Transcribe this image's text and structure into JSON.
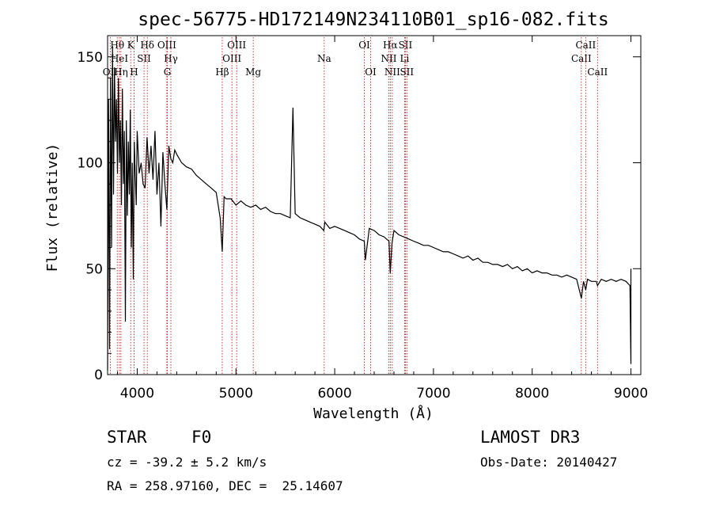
{
  "chart_data": {
    "type": "line",
    "title": "spec-56775-HD172149N234110B01_sp16-082.fits",
    "xlabel": "Wavelength (Å)",
    "ylabel": "Flux (relative)",
    "xlim": [
      3700,
      9100
    ],
    "ylim": [
      0,
      160
    ],
    "xticks": [
      4000,
      5000,
      6000,
      7000,
      8000,
      9000
    ],
    "yticks": [
      0,
      50,
      100,
      150
    ],
    "series": [
      {
        "name": "spectrum",
        "x": [
          3700,
          3710,
          3720,
          3730,
          3740,
          3750,
          3760,
          3770,
          3780,
          3790,
          3800,
          3810,
          3820,
          3830,
          3840,
          3850,
          3860,
          3870,
          3880,
          3890,
          3900,
          3910,
          3920,
          3930,
          3940,
          3950,
          3960,
          3970,
          3980,
          3990,
          4000,
          4020,
          4040,
          4060,
          4080,
          4100,
          4120,
          4140,
          4160,
          4180,
          4200,
          4220,
          4240,
          4260,
          4280,
          4300,
          4320,
          4340,
          4360,
          4380,
          4400,
          4450,
          4500,
          4550,
          4600,
          4650,
          4700,
          4750,
          4800,
          4840,
          4861,
          4880,
          4900,
          4950,
          5000,
          5050,
          5100,
          5150,
          5200,
          5250,
          5300,
          5350,
          5400,
          5450,
          5500,
          5550,
          5577,
          5600,
          5650,
          5700,
          5750,
          5800,
          5850,
          5890,
          5900,
          5950,
          6000,
          6050,
          6100,
          6150,
          6200,
          6250,
          6300,
          6310,
          6350,
          6400,
          6450,
          6500,
          6550,
          6563,
          6580,
          6600,
          6650,
          6700,
          6750,
          6800,
          6850,
          6900,
          6950,
          7000,
          7050,
          7100,
          7150,
          7200,
          7250,
          7300,
          7350,
          7400,
          7450,
          7500,
          7550,
          7600,
          7650,
          7700,
          7750,
          7800,
          7850,
          7900,
          7950,
          8000,
          8050,
          8100,
          8150,
          8200,
          8250,
          8300,
          8350,
          8400,
          8450,
          8498,
          8520,
          8542,
          8560,
          8600,
          8650,
          8662,
          8700,
          8750,
          8800,
          8850,
          8900,
          8950,
          8990,
          9000,
          9000
        ],
        "values": [
          2,
          130,
          12,
          140,
          60,
          155,
          85,
          145,
          110,
          130,
          95,
          140,
          100,
          120,
          80,
          135,
          90,
          115,
          25,
          120,
          75,
          110,
          85,
          125,
          60,
          100,
          45,
          110,
          95,
          80,
          115,
          95,
          100,
          90,
          88,
          112,
          95,
          108,
          92,
          115,
          85,
          100,
          70,
          105,
          90,
          78,
          108,
          102,
          100,
          106,
          104,
          100,
          98,
          97,
          94,
          92,
          90,
          88,
          86,
          74,
          58,
          84,
          83,
          83,
          80,
          82,
          80,
          79,
          80,
          78,
          79,
          77,
          76,
          76,
          75,
          74,
          126,
          76,
          74,
          73,
          72,
          71,
          70,
          68,
          72,
          69,
          70,
          69,
          68,
          67,
          66,
          64,
          63,
          54,
          69,
          68,
          66,
          65,
          63,
          48,
          62,
          68,
          66,
          65,
          64,
          63,
          62,
          61,
          61,
          60,
          59,
          58,
          58,
          57,
          56,
          55,
          56,
          54,
          55,
          53,
          53,
          52,
          52,
          51,
          52,
          50,
          51,
          49,
          50,
          48,
          49,
          48,
          48,
          47,
          47,
          46,
          47,
          46,
          45,
          36,
          44,
          40,
          45,
          44,
          44,
          42,
          45,
          44,
          45,
          44,
          45,
          44,
          42,
          5,
          50
        ]
      }
    ],
    "lines": [
      {
        "name": "OII",
        "w": 3727,
        "row": 3
      },
      {
        "name": "Hθ",
        "w": 3798,
        "row": 1
      },
      {
        "name": "HeI",
        "w": 3820,
        "row": 2
      },
      {
        "name": "Hη",
        "w": 3835,
        "row": 3
      },
      {
        "name": "K",
        "w": 3934,
        "row": 1
      },
      {
        "name": "H",
        "w": 3968,
        "row": 3
      },
      {
        "name": "SII",
        "w": 4069,
        "row": 2
      },
      {
        "name": "Hδ",
        "w": 4102,
        "row": 1
      },
      {
        "name": "OIII",
        "w": 4300,
        "row": 1
      },
      {
        "name": "G",
        "w": 4305,
        "row": 3
      },
      {
        "name": "Hγ",
        "w": 4341,
        "row": 2
      },
      {
        "name": "Hβ",
        "w": 4861,
        "row": 3
      },
      {
        "name": "OIII",
        "w": 4959,
        "row": 2
      },
      {
        "name": "OIII",
        "w": 5007,
        "row": 1
      },
      {
        "name": "Mg",
        "w": 5175,
        "row": 3
      },
      {
        "name": "Na",
        "w": 5894,
        "row": 2
      },
      {
        "name": "OI",
        "w": 6300,
        "row": 1
      },
      {
        "name": "OI",
        "w": 6364,
        "row": 3
      },
      {
        "name": "NII",
        "w": 6548,
        "row": 2
      },
      {
        "name": "Hα",
        "w": 6563,
        "row": 1
      },
      {
        "name": "NII",
        "w": 6583,
        "row": 3
      },
      {
        "name": "SII",
        "w": 6716,
        "row": 1
      },
      {
        "name": "SII",
        "w": 6731,
        "row": 3
      },
      {
        "name": "Li",
        "w": 6708,
        "row": 2
      },
      {
        "name": "CaII",
        "w": 8498,
        "row": 2
      },
      {
        "name": "CaII",
        "w": 8542,
        "row": 1
      },
      {
        "name": "CaII",
        "w": 8662,
        "row": 3
      }
    ]
  },
  "info": {
    "object_class": "STAR",
    "subclass": "F0",
    "survey": "LAMOST DR3",
    "cz": "cz = -39.2 ± 5.2 km/s",
    "obs_date": "Obs-Date: 20140427",
    "coords": "RA = 258.97160, DEC =  25.14607"
  },
  "colors": {
    "spectrum": "#000000",
    "lines": "#cc0000",
    "axes": "#000000"
  }
}
